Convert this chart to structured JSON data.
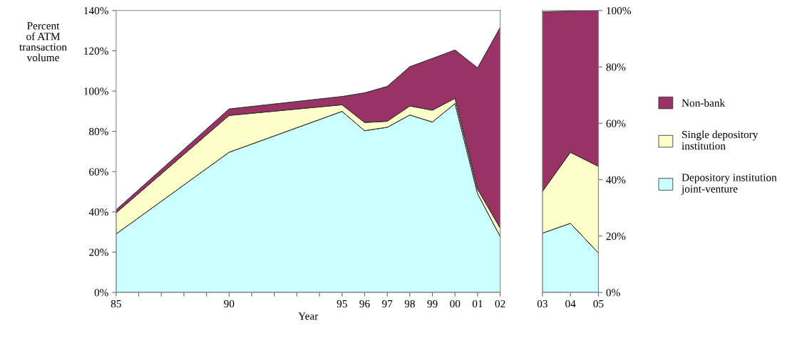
{
  "chart_data": [
    {
      "type": "area",
      "stacked": true,
      "xlabel": "Year",
      "ylabel": "Percent\nof ATM\ntransaction\nvolume",
      "x": [
        1985,
        1990,
        1995,
        1996,
        1997,
        1998,
        1999,
        2000,
        2001,
        2002
      ],
      "xlim": [
        1985,
        2002
      ],
      "xticks": [
        {
          "value": 1985,
          "label": "85"
        },
        {
          "value": 1986,
          "label": null
        },
        {
          "value": 1987,
          "label": null
        },
        {
          "value": 1988,
          "label": null
        },
        {
          "value": 1989,
          "label": null
        },
        {
          "value": 1990,
          "label": "90"
        },
        {
          "value": 1991,
          "label": null
        },
        {
          "value": 1992,
          "label": null
        },
        {
          "value": 1993,
          "label": null
        },
        {
          "value": 1994,
          "label": null
        },
        {
          "value": 1995,
          "label": "95"
        },
        {
          "value": 1996,
          "label": "96"
        },
        {
          "value": 1997,
          "label": "97"
        },
        {
          "value": 1998,
          "label": "98"
        },
        {
          "value": 1999,
          "label": "99"
        },
        {
          "value": 2000,
          "label": "00"
        },
        {
          "value": 2001,
          "label": "01"
        },
        {
          "value": 2002,
          "label": "02"
        }
      ],
      "ylim": [
        0,
        140
      ],
      "yticks": [
        {
          "value": 0,
          "label": "0%"
        },
        {
          "value": 20,
          "label": "20%"
        },
        {
          "value": 40,
          "label": "40%"
        },
        {
          "value": 60,
          "label": "60%"
        },
        {
          "value": 80,
          "label": "80%"
        },
        {
          "value": 100,
          "label": "100%"
        },
        {
          "value": 120,
          "label": "120%"
        },
        {
          "value": 140,
          "label": "140%"
        }
      ],
      "grid": false,
      "legend": false,
      "series": [
        {
          "color": "#ccffff",
          "values": [
            29,
            69.6,
            89.9,
            80.3,
            82,
            88.1,
            84.6,
            93.8,
            49,
            27.8
          ]
        },
        {
          "color": "#ffffcc",
          "values": [
            10.5,
            18.3,
            3.3,
            4.1,
            3,
            4.5,
            5.9,
            2.6,
            2.3,
            4.1
          ]
        },
        {
          "color": "#993366",
          "values": [
            1.5,
            3.2,
            4.1,
            14.7,
            17.3,
            19.5,
            25.7,
            24,
            60.2,
            99.7
          ]
        }
      ]
    },
    {
      "type": "area",
      "stacked": true,
      "x": [
        2003,
        2004,
        2005
      ],
      "xlim": [
        2003,
        2005
      ],
      "xticks": [
        {
          "value": 2003,
          "label": "03"
        },
        {
          "value": 2004,
          "label": "04"
        },
        {
          "value": 2005,
          "label": "05"
        }
      ],
      "ylim": [
        0,
        100
      ],
      "yticks": [
        {
          "value": 0,
          "label": "0%"
        },
        {
          "value": 20,
          "label": "20%"
        },
        {
          "value": 40,
          "label": "40%"
        },
        {
          "value": 60,
          "label": "60%"
        },
        {
          "value": 80,
          "label": "80%"
        },
        {
          "value": 100,
          "label": "100%"
        }
      ],
      "grid": false,
      "legend": "right",
      "series": [
        {
          "name": "Depository institution\njoint-venture",
          "color": "#ccffff",
          "values": [
            21,
            24.5,
            14
          ]
        },
        {
          "name": "Single depository\ninstitution",
          "color": "#ffffcc",
          "values": [
            14.8,
            25.2,
            30.7
          ]
        },
        {
          "name": "Non-bank",
          "color": "#993366",
          "values": [
            63.7,
            50.1,
            55.3
          ]
        }
      ]
    }
  ]
}
